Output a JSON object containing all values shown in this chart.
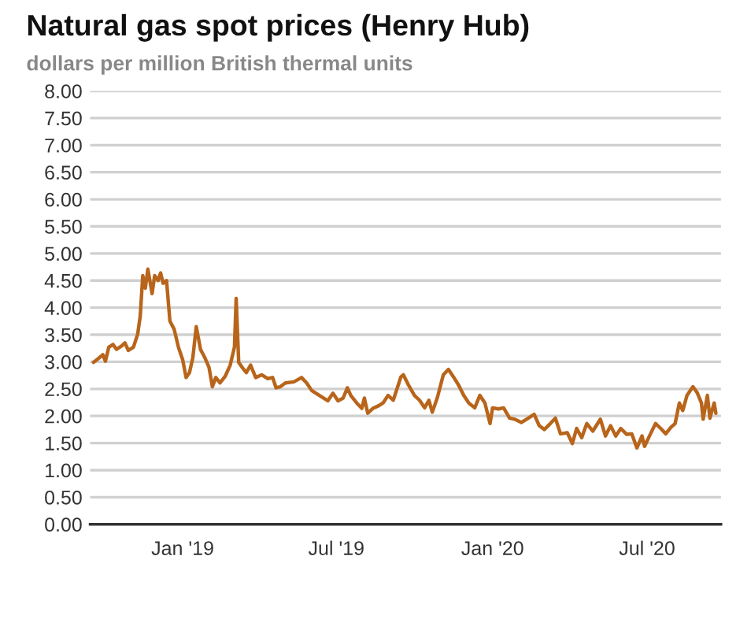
{
  "chart_data": {
    "type": "line",
    "title": "Natural gas spot prices (Henry Hub)",
    "subtitle": "dollars per million British thermal units",
    "x": [
      "2018-09-18",
      "2018-09-22",
      "2018-09-29",
      "2018-10-02",
      "2018-10-06",
      "2018-10-11",
      "2018-10-15",
      "2018-10-21",
      "2018-10-25",
      "2018-10-29",
      "2018-11-04",
      "2018-11-09",
      "2018-11-12",
      "2018-11-15",
      "2018-11-18",
      "2018-11-21",
      "2018-11-26",
      "2018-11-29",
      "2018-12-03",
      "2018-12-06",
      "2018-12-09",
      "2018-12-13",
      "2018-12-17",
      "2018-12-22",
      "2018-12-27",
      "2019-01-01",
      "2019-01-05",
      "2019-01-09",
      "2019-01-13",
      "2019-01-17",
      "2019-01-22",
      "2019-01-27",
      "2019-02-01",
      "2019-02-05",
      "2019-02-09",
      "2019-02-14",
      "2019-02-20",
      "2019-02-26",
      "2019-03-03",
      "2019-03-05",
      "2019-03-08",
      "2019-03-12",
      "2019-03-17",
      "2019-03-22",
      "2019-03-28",
      "2019-04-04",
      "2019-04-11",
      "2019-04-17",
      "2019-04-21",
      "2019-04-26",
      "2019-05-02",
      "2019-05-12",
      "2019-05-21",
      "2019-05-27",
      "2019-06-02",
      "2019-06-11",
      "2019-06-21",
      "2019-06-27",
      "2019-07-03",
      "2019-07-09",
      "2019-07-14",
      "2019-07-18",
      "2019-07-25",
      "2019-07-31",
      "2019-08-03",
      "2019-08-07",
      "2019-08-13",
      "2019-08-20",
      "2019-08-25",
      "2019-08-31",
      "2019-09-06",
      "2019-09-15",
      "2019-09-18",
      "2019-09-24",
      "2019-10-01",
      "2019-10-07",
      "2019-10-13",
      "2019-10-18",
      "2019-10-22",
      "2019-10-28",
      "2019-11-04",
      "2019-11-10",
      "2019-11-16",
      "2019-11-22",
      "2019-11-28",
      "2019-12-04",
      "2019-12-11",
      "2019-12-17",
      "2019-12-23",
      "2019-12-29",
      "2020-01-01",
      "2020-01-08",
      "2020-01-14",
      "2020-01-21",
      "2020-01-27",
      "2020-02-04",
      "2020-02-10",
      "2020-02-19",
      "2020-02-25",
      "2020-03-02",
      "2020-03-09",
      "2020-03-15",
      "2020-03-21",
      "2020-03-29",
      "2020-04-04",
      "2020-04-09",
      "2020-04-15",
      "2020-04-21",
      "2020-04-28",
      "2020-05-07",
      "2020-05-13",
      "2020-05-19",
      "2020-05-25",
      "2020-05-31",
      "2020-06-07",
      "2020-06-13",
      "2020-06-19",
      "2020-06-25",
      "2020-06-28",
      "2020-07-05",
      "2020-07-11",
      "2020-07-17",
      "2020-07-23",
      "2020-07-29",
      "2020-08-03",
      "2020-08-08",
      "2020-08-12",
      "2020-08-17",
      "2020-08-24",
      "2020-08-29",
      "2020-09-03",
      "2020-09-05",
      "2020-09-10",
      "2020-09-13",
      "2020-09-18",
      "2020-09-20"
    ],
    "series": [
      {
        "color": "#b8651b",
        "values": [
          2.99,
          3.04,
          3.13,
          3.01,
          3.27,
          3.32,
          3.23,
          3.29,
          3.35,
          3.21,
          3.27,
          3.51,
          3.84,
          4.59,
          4.36,
          4.71,
          4.26,
          4.59,
          4.5,
          4.64,
          4.45,
          4.5,
          3.75,
          3.6,
          3.27,
          3.04,
          2.71,
          2.8,
          3.08,
          3.65,
          3.23,
          3.08,
          2.9,
          2.54,
          2.71,
          2.61,
          2.73,
          2.94,
          3.27,
          4.17,
          2.99,
          2.9,
          2.8,
          2.94,
          2.71,
          2.76,
          2.69,
          2.71,
          2.52,
          2.54,
          2.61,
          2.63,
          2.71,
          2.61,
          2.47,
          2.38,
          2.28,
          2.42,
          2.28,
          2.33,
          2.52,
          2.38,
          2.24,
          2.14,
          2.33,
          2.05,
          2.14,
          2.19,
          2.24,
          2.38,
          2.29,
          2.72,
          2.76,
          2.57,
          2.38,
          2.29,
          2.15,
          2.29,
          2.07,
          2.34,
          2.76,
          2.86,
          2.72,
          2.57,
          2.38,
          2.24,
          2.15,
          2.38,
          2.24,
          1.86,
          2.15,
          2.13,
          2.15,
          1.96,
          1.94,
          1.88,
          1.94,
          2.03,
          1.82,
          1.75,
          1.86,
          1.96,
          1.67,
          1.69,
          1.49,
          1.77,
          1.6,
          1.86,
          1.72,
          1.94,
          1.63,
          1.82,
          1.63,
          1.77,
          1.66,
          1.67,
          1.41,
          1.63,
          1.44,
          1.67,
          1.86,
          1.77,
          1.67,
          1.79,
          1.86,
          2.24,
          2.1,
          2.38,
          2.54,
          2.43,
          2.24,
          1.94,
          2.38,
          1.96,
          2.24,
          2.05
        ]
      }
    ],
    "xlim": [
      "2018-09-14",
      "2020-09-26"
    ],
    "xticks": [
      {
        "value": "2019-01-01",
        "label": "Jan '19"
      },
      {
        "value": "2019-07-01",
        "label": "Jul '19"
      },
      {
        "value": "2020-01-01",
        "label": "Jan '20"
      },
      {
        "value": "2020-07-01",
        "label": "Jul '20"
      }
    ],
    "ylim": [
      0,
      8
    ],
    "yticks": [
      {
        "value": 0,
        "label": "0.00"
      },
      {
        "value": 0.5,
        "label": "0.50"
      },
      {
        "value": 1,
        "label": "1.00"
      },
      {
        "value": 1.5,
        "label": "1.50"
      },
      {
        "value": 2,
        "label": "2.00"
      },
      {
        "value": 2.5,
        "label": "2.50"
      },
      {
        "value": 3,
        "label": "3.00"
      },
      {
        "value": 3.5,
        "label": "3.50"
      },
      {
        "value": 4,
        "label": "4.00"
      },
      {
        "value": 4.5,
        "label": "4.50"
      },
      {
        "value": 5,
        "label": "5.00"
      },
      {
        "value": 5.5,
        "label": "5.50"
      },
      {
        "value": 6,
        "label": "6.00"
      },
      {
        "value": 6.5,
        "label": "6.50"
      },
      {
        "value": 7,
        "label": "7.00"
      },
      {
        "value": 7.5,
        "label": "7.50"
      },
      {
        "value": 8,
        "label": "8.00"
      }
    ],
    "grid": "y",
    "legend": false,
    "marker": "none",
    "line_style": "solid"
  }
}
